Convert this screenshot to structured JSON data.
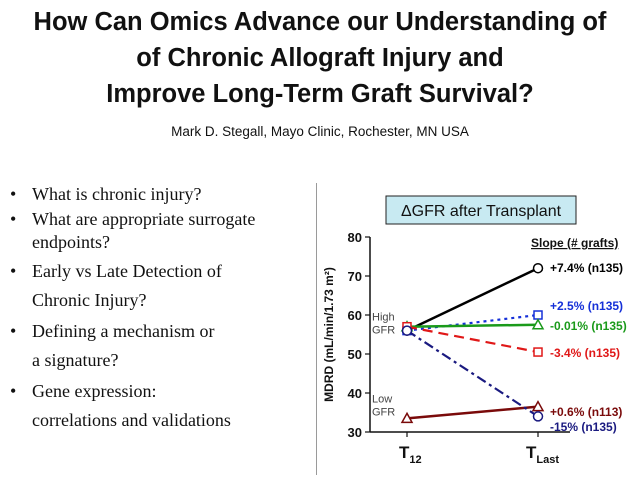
{
  "slide": {
    "title_lines": [
      "How Can Omics Advance our Understanding of",
      "of Chronic Allograft Injury and",
      "Improve Long-Term Graft Survival?"
    ],
    "author": "Mark D. Stegall, Mayo Clinic, Rochester, MN USA",
    "bullet_symbol": "•",
    "bullets": [
      {
        "line1": "What is chronic injury?",
        "line2": ""
      },
      {
        "line1": "What are appropriate surrogate",
        "line2": "endpoints?"
      },
      {
        "line1": "Early vs Late Detection of",
        "line2": "Chronic Injury?"
      },
      {
        "line1": "Defining a mechanism or",
        "line2": "a signature?"
      },
      {
        "line1": "Gene expression:",
        "line2": "correlations and validations"
      }
    ]
  },
  "chart_data": {
    "type": "line",
    "title": "ΔGFR after Transplant",
    "title_bg": "#c8eaf2",
    "ylabel": "MDRD (mL/min/1.73 m²)",
    "ylim": [
      30,
      80
    ],
    "yticks": [
      "30",
      "40",
      "50",
      "60",
      "70",
      "80"
    ],
    "categories": [
      "T12",
      "TLast"
    ],
    "x_labels": [
      {
        "main": "T",
        "sub": "12"
      },
      {
        "main": "T",
        "sub": "Last"
      }
    ],
    "legend_header": "Slope (# grafts)",
    "group_labels": [
      {
        "lines": [
          "High",
          "GFR"
        ],
        "y": 57
      },
      {
        "lines": [
          "Low",
          "GFR"
        ],
        "y": 36
      }
    ],
    "series": [
      {
        "name": "+7.4% (n135)",
        "values": [
          56,
          72
        ],
        "color": "#000000",
        "dash": "solid",
        "marker": "circle"
      },
      {
        "name": "+2.5% (n135)",
        "values": [
          56,
          60
        ],
        "color": "#1530d8",
        "dash": "dot",
        "marker": "square"
      },
      {
        "name": "-0.01% (n135)",
        "values": [
          57,
          57.5
        ],
        "color": "#1a9a1a",
        "dash": "solid",
        "marker": "triangle"
      },
      {
        "name": "-3.4% (n135)",
        "values": [
          57,
          50.5
        ],
        "color": "#e01818",
        "dash": "dash",
        "marker": "square"
      },
      {
        "name": "+0.6% (n113)",
        "values": [
          33.5,
          36.5
        ],
        "color": "#7a0a0a",
        "dash": "solid",
        "marker": "triangle"
      },
      {
        "name": "-15% (n135)",
        "values": [
          56,
          34
        ],
        "color": "#1a1a80",
        "dash": "dashdot",
        "marker": "circle"
      }
    ]
  }
}
